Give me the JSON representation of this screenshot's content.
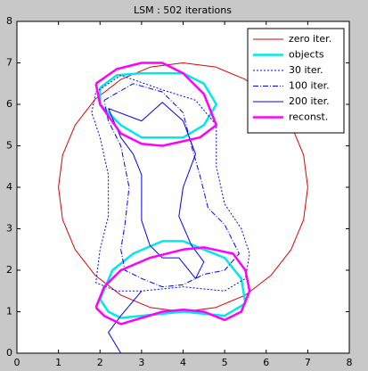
{
  "chart_data": {
    "type": "line",
    "title": "LSM : 502 iterations",
    "xlim": [
      0,
      8
    ],
    "ylim": [
      0,
      8
    ],
    "xticks": [
      0,
      1,
      2,
      3,
      4,
      5,
      6,
      7,
      8
    ],
    "yticks": [
      0,
      1,
      2,
      3,
      4,
      5,
      6,
      7,
      8
    ],
    "grid": false,
    "legend": "upper right",
    "series": [
      {
        "name": "zero iter.",
        "color": "#e00000",
        "linestyle": "solid",
        "linewidth": 1,
        "x": [
          7,
          6.9,
          6.6,
          6.12,
          5.5,
          4.78,
          4,
          3.22,
          2.5,
          1.88,
          1.4,
          1.1,
          1,
          1.1,
          1.4,
          1.88,
          2.5,
          3.22,
          4,
          4.78,
          5.5,
          6.12,
          6.6,
          6.9,
          7
        ],
        "y": [
          4,
          4.78,
          5.5,
          6.12,
          6.6,
          6.9,
          7,
          6.9,
          6.6,
          6.12,
          5.5,
          4.78,
          4,
          3.22,
          2.5,
          1.88,
          1.4,
          1.1,
          1,
          1.1,
          1.4,
          1.88,
          2.5,
          3.22,
          4
        ]
      },
      {
        "name": "objects",
        "color": "#00e8e8",
        "linestyle": "solid",
        "linewidth": 2.5,
        "x": [
          2,
          2.4,
          3,
          4,
          4.5,
          4.8,
          4.5,
          4,
          3,
          2.5,
          2,
          2,
          null,
          2,
          2.3,
          2.8,
          3.5,
          4,
          4.5,
          5,
          5.4,
          5.5,
          5,
          4,
          3,
          2.5,
          2.2,
          2
        ],
        "y": [
          6.4,
          6.7,
          6.75,
          6.75,
          6.5,
          6,
          5.5,
          5.2,
          5.2,
          5.5,
          6,
          6.4,
          null,
          1.3,
          2,
          2.4,
          2.7,
          2.7,
          2.5,
          2.3,
          1.8,
          1.2,
          0.9,
          1,
          0.9,
          0.85,
          1,
          1.3
        ]
      },
      {
        "name": "30 iter.",
        "color": "#0000ff",
        "linestyle": "dotted",
        "linewidth": 1,
        "x": [
          1.9,
          2.5,
          3.5,
          4.3,
          4.8,
          4.8,
          5,
          5.4,
          5.6,
          5.5,
          5,
          4,
          3,
          2.4,
          1.9,
          2,
          2.2,
          2.2,
          2,
          1.8,
          1.9
        ],
        "y": [
          6.3,
          6.7,
          6.35,
          6.1,
          5.5,
          4.5,
          3.6,
          3,
          2.4,
          1.8,
          1.5,
          1.6,
          1.5,
          1.5,
          1.7,
          2.5,
          3.3,
          4.3,
          5.2,
          5.8,
          6.3
        ]
      },
      {
        "name": "100 iter.",
        "color": "#0000ff",
        "linestyle": "dashdot",
        "linewidth": 1,
        "x": [
          2.1,
          2.8,
          3.5,
          4,
          4.2,
          4.4,
          4.6,
          5,
          5.35,
          5,
          4.5,
          4,
          3.5,
          3,
          2.6,
          2.5,
          2.6,
          2.7,
          2.5,
          2.2,
          2.1
        ],
        "y": [
          6.1,
          6.5,
          6.3,
          5.8,
          5,
          4.3,
          3.5,
          3.1,
          2.4,
          2,
          1.9,
          1.65,
          1.6,
          1.8,
          2,
          2.5,
          3.1,
          4,
          5,
          5.6,
          6.1
        ]
      },
      {
        "name": "200 iter.",
        "color": "#0000ff",
        "linestyle": "solid",
        "linewidth": 1,
        "x": [
          2.2,
          3,
          3.5,
          4,
          4.3,
          4,
          3.9,
          4.2,
          4.5,
          4.3,
          3.9,
          3.5,
          3.2,
          3,
          3,
          2.8,
          2.5,
          2.2,
          null,
          3,
          2.5,
          2.2,
          2.5
        ],
        "y": [
          5.9,
          5.6,
          6.05,
          5.6,
          4.8,
          4,
          3.3,
          2.6,
          2.2,
          1.8,
          2.3,
          2.3,
          2.6,
          3.2,
          4.3,
          4.8,
          5.2,
          5.9,
          null,
          1.5,
          0.9,
          0.5,
          0
        ]
      },
      {
        "name": "reconst.",
        "color": "#ff00ff",
        "linestyle": "solid",
        "linewidth": 2.5,
        "x": [
          1.9,
          2.4,
          3,
          3.5,
          4,
          4.5,
          4.8,
          4.4,
          3.5,
          3,
          2.5,
          2,
          1.9,
          null,
          1.9,
          2.1,
          2.5,
          3.2,
          4,
          4.5,
          5.2,
          5.5,
          5.6,
          5.4,
          5,
          4.5,
          4,
          3.5,
          3,
          2.5,
          2.1,
          1.9
        ],
        "y": [
          6.5,
          6.85,
          7,
          7,
          6.75,
          6.25,
          5.5,
          5.2,
          5,
          5.05,
          5.3,
          6,
          6.5,
          null,
          1.1,
          1.6,
          2,
          2.3,
          2.5,
          2.55,
          2.4,
          2,
          1.5,
          1,
          0.8,
          1,
          1.05,
          1,
          0.85,
          0.7,
          0.9,
          1.1
        ]
      }
    ]
  }
}
